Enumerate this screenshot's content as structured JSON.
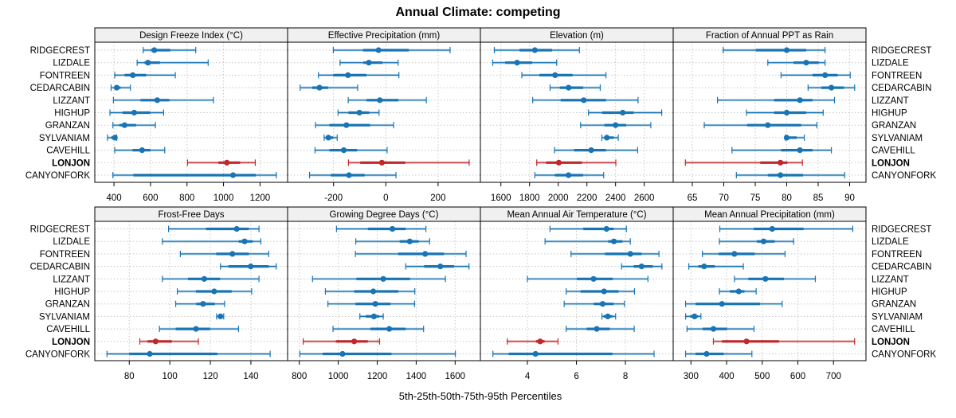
{
  "chart_data": {
    "type": "dotplot-percentile-intervals",
    "title": "Annual Climate: competing",
    "xlabel": "5th-25th-50th-75th-95th Percentiles",
    "stations": [
      "RIDGECREST",
      "LIZDALE",
      "FONTREEN",
      "CEDARCABIN",
      "LIZZANT",
      "HIGHUP",
      "GRANZAN",
      "SYLVANIAM",
      "CAVEHILL",
      "LONJON",
      "CANYONFORK"
    ],
    "highlight": "LONJON",
    "colors": {
      "default": "#1874b4",
      "highlight": "#c0282c",
      "grid": "#c8c8c8",
      "strip": "#f0f0f0"
    },
    "grid": true,
    "panels": [
      {
        "title": "Design Freeze Index (°C)",
        "xlim": [
          295,
          1351
        ],
        "ticks": [
          400,
          600,
          800,
          1000,
          1200
        ],
        "values": [
          [
            560,
            604,
            621,
            708,
            848
          ],
          [
            527,
            567,
            586,
            652,
            916
          ],
          [
            404,
            458,
            503,
            577,
            736
          ],
          [
            384,
            400,
            415,
            436,
            490
          ],
          [
            397,
            545,
            637,
            704,
            945
          ],
          [
            378,
            447,
            511,
            599,
            672
          ],
          [
            394,
            429,
            458,
            521,
            627
          ],
          [
            364,
            385,
            405,
            415,
            415
          ],
          [
            404,
            502,
            554,
            599,
            678
          ],
          [
            803,
            972,
            1018,
            1091,
            1174
          ],
          [
            394,
            506,
            1052,
            1177,
            1289
          ]
        ]
      },
      {
        "title": "Effective Precipitation (mm)",
        "xlim": [
          -376,
          362
        ],
        "ticks": [
          -200,
          0,
          200
        ],
        "values": [
          [
            -201,
            -87,
            -28,
            88,
            246
          ],
          [
            -175,
            -86,
            -65,
            -13,
            47
          ],
          [
            -258,
            -201,
            -145,
            -74,
            50
          ],
          [
            -328,
            -282,
            -254,
            -221,
            -108
          ],
          [
            -144,
            -74,
            -23,
            48,
            155
          ],
          [
            -183,
            -143,
            -101,
            -64,
            -26
          ],
          [
            -269,
            -216,
            -151,
            -60,
            30
          ],
          [
            -236,
            -228,
            -220,
            -201,
            -186
          ],
          [
            -271,
            -216,
            -161,
            -110,
            5
          ],
          [
            -143,
            -98,
            -15,
            74,
            319
          ],
          [
            -292,
            -211,
            -141,
            -81,
            39
          ]
        ]
      },
      {
        "title": "Elevation (m)",
        "xlim": [
          1457,
          2802
        ],
        "ticks": [
          1600,
          1800,
          2000,
          2200,
          2400,
          2600
        ],
        "values": [
          [
            1554,
            1730,
            1837,
            1957,
            2148
          ],
          [
            1543,
            1630,
            1713,
            1819,
            1989
          ],
          [
            1746,
            1869,
            1978,
            2100,
            2333
          ],
          [
            1943,
            2011,
            2072,
            2174,
            2293
          ],
          [
            1822,
            2017,
            2178,
            2333,
            2557
          ],
          [
            2211,
            2307,
            2450,
            2526,
            2722
          ],
          [
            2156,
            2322,
            2400,
            2474,
            2646
          ],
          [
            2304,
            2322,
            2339,
            2387,
            2419
          ],
          [
            1974,
            2111,
            2230,
            2333,
            2554
          ],
          [
            1850,
            1915,
            2004,
            2165,
            2402
          ],
          [
            1837,
            1976,
            2072,
            2174,
            2317
          ]
        ]
      },
      {
        "title": "Fraction of Annual PPT as Rain",
        "xlim": [
          61.96,
          92.6
        ],
        "ticks": [
          65,
          70,
          75,
          80,
          85,
          90
        ],
        "values": [
          [
            69.9,
            75.1,
            80,
            83.1,
            86.1
          ],
          [
            77,
            81.1,
            83.1,
            85.1,
            86.1
          ],
          [
            79.1,
            84.1,
            86.1,
            88.1,
            90.1
          ],
          [
            83.4,
            85.5,
            87.1,
            89.1,
            90.8
          ],
          [
            69,
            78,
            82.1,
            84.1,
            87.6
          ],
          [
            73.6,
            78,
            80,
            83.1,
            85.8
          ],
          [
            66.9,
            73.7,
            77,
            82.3,
            84.8
          ],
          [
            79.8,
            79.9,
            80,
            81.6,
            82.8
          ],
          [
            71.3,
            79.1,
            82.1,
            84.1,
            87.1
          ],
          [
            63.9,
            75.8,
            79,
            80.1,
            82.5
          ],
          [
            72,
            77,
            79,
            82.6,
            89.2
          ]
        ]
      },
      {
        "title": "Frost-Free Days",
        "xlim": [
          63,
          158.1
        ],
        "ticks": [
          80,
          100,
          120,
          140
        ],
        "values": [
          [
            99.4,
            117.9,
            133,
            139,
            144
          ],
          [
            96.3,
            134,
            136.9,
            140.9,
            144.9
          ],
          [
            105.2,
            122.9,
            130.9,
            139,
            148.8
          ],
          [
            125,
            128.9,
            139.9,
            148.8,
            152.5
          ],
          [
            96.3,
            109,
            117,
            124.8,
            144
          ],
          [
            103.7,
            112.9,
            121.9,
            130.5,
            140.4
          ],
          [
            102.9,
            113,
            116.4,
            122.2,
            127
          ],
          [
            123.1,
            123.9,
            125,
            125.7,
            126.6
          ],
          [
            94.9,
            102.9,
            112.9,
            119.8,
            133.9
          ],
          [
            85.2,
            89,
            93,
            101,
            114.1
          ],
          [
            69,
            80,
            90.1,
            123.4,
            149.5
          ]
        ]
      },
      {
        "title": "Growing Degree Days (°C)",
        "xlim": [
          740,
          1729.6
        ],
        "ticks": [
          800,
          1000,
          1200,
          1400,
          1600
        ],
        "values": [
          [
            991,
            1152,
            1278,
            1346,
            1450
          ],
          [
            1090,
            1315,
            1367,
            1413,
            1469
          ],
          [
            1088,
            1308,
            1446,
            1543,
            1656
          ],
          [
            1346,
            1441,
            1524,
            1595,
            1671
          ],
          [
            868,
            1093,
            1231,
            1368,
            1550
          ],
          [
            934,
            1082,
            1180,
            1308,
            1393
          ],
          [
            947,
            1088,
            1190,
            1268,
            1392
          ],
          [
            1111,
            1141,
            1183,
            1210,
            1231
          ],
          [
            973,
            1165,
            1262,
            1346,
            1438
          ],
          [
            820,
            988,
            1082,
            1152,
            1212
          ],
          [
            803,
            920,
            1022,
            1273,
            1601
          ]
        ]
      },
      {
        "title": "Mean Annual Air Temperature (°C)",
        "xlim": [
          2.08,
          9.95
        ],
        "ticks": [
          4,
          6,
          8
        ],
        "values": [
          [
            4.92,
            6.28,
            7.23,
            7.52,
            8.04
          ],
          [
            4.72,
            7.3,
            7.53,
            7.88,
            8.2
          ],
          [
            5.78,
            7.17,
            8.2,
            8.66,
            9.37
          ],
          [
            7.84,
            8.34,
            8.66,
            9.12,
            9.49
          ],
          [
            4,
            6.02,
            6.7,
            7.48,
            8.92
          ],
          [
            5.58,
            6.17,
            7.13,
            7.72,
            8.37
          ],
          [
            5.5,
            6.71,
            7.07,
            7.52,
            7.96
          ],
          [
            7.04,
            7.11,
            7.28,
            7.47,
            7.6
          ],
          [
            5.58,
            6.42,
            6.83,
            7.36,
            8.36
          ],
          [
            3.18,
            4.35,
            4.52,
            4.7,
            5.25
          ],
          [
            2.59,
            3.24,
            4.33,
            7.47,
            9.17
          ]
        ]
      },
      {
        "title": "Mean Annual Precipitation (mm)",
        "xlim": [
          250.2,
          791
        ],
        "ticks": [
          300,
          400,
          500,
          600,
          700
        ],
        "values": [
          [
            381,
            476,
            528,
            616,
            754
          ],
          [
            380,
            485,
            504,
            535,
            588
          ],
          [
            332,
            378,
            422,
            479,
            564
          ],
          [
            294,
            321,
            337,
            367,
            447
          ],
          [
            422,
            461,
            509,
            561,
            649
          ],
          [
            380,
            409,
            434,
            450,
            483
          ],
          [
            285,
            313,
            387,
            494,
            556
          ],
          [
            285,
            298,
            310,
            320,
            328
          ],
          [
            289,
            333,
            363,
            401,
            477
          ],
          [
            363,
            387,
            456,
            547,
            759
          ],
          [
            285,
            313,
            344,
            392,
            471
          ]
        ]
      }
    ]
  }
}
